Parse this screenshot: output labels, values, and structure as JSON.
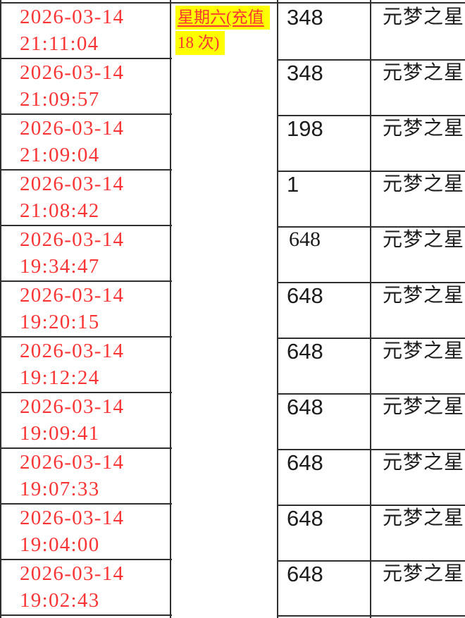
{
  "colors": {
    "date_red": "#fa3434",
    "highlight_yellow": "#ffff00",
    "text_ink": "#1c1c1c",
    "grid_line": "#2f2f2f"
  },
  "table": {
    "note": {
      "line1": "星期六(充值",
      "line2": "18 次)"
    },
    "rows": [
      {
        "date": "2026-03-14",
        "time": "21:11:04",
        "amount": "348",
        "game": "元梦之星",
        "serif": false
      },
      {
        "date": "2026-03-14",
        "time": "21:09:57",
        "amount": "348",
        "game": "元梦之星",
        "serif": false
      },
      {
        "date": "2026-03-14",
        "time": "21:09:04",
        "amount": "198",
        "game": "元梦之星",
        "serif": false
      },
      {
        "date": "2026-03-14",
        "time": "21:08:42",
        "amount": "1",
        "game": "元梦之星",
        "serif": false
      },
      {
        "date": "2026-03-14",
        "time": "19:34:47",
        "amount": "648",
        "game": "元梦之星",
        "serif": true
      },
      {
        "date": "2026-03-14",
        "time": "19:20:15",
        "amount": "648",
        "game": "元梦之星",
        "serif": false
      },
      {
        "date": "2026-03-14",
        "time": "19:12:24",
        "amount": "648",
        "game": "元梦之星",
        "serif": false
      },
      {
        "date": "2026-03-14",
        "time": "19:09:41",
        "amount": "648",
        "game": "元梦之星",
        "serif": false
      },
      {
        "date": "2026-03-14",
        "time": "19:07:33",
        "amount": "648",
        "game": "元梦之星",
        "serif": false
      },
      {
        "date": "2026-03-14",
        "time": "19:04:00",
        "amount": "648",
        "game": "元梦之星",
        "serif": false
      },
      {
        "date": "2026-03-14",
        "time": "19:02:43",
        "amount": "648",
        "game": "元梦之星",
        "serif": false
      }
    ]
  }
}
